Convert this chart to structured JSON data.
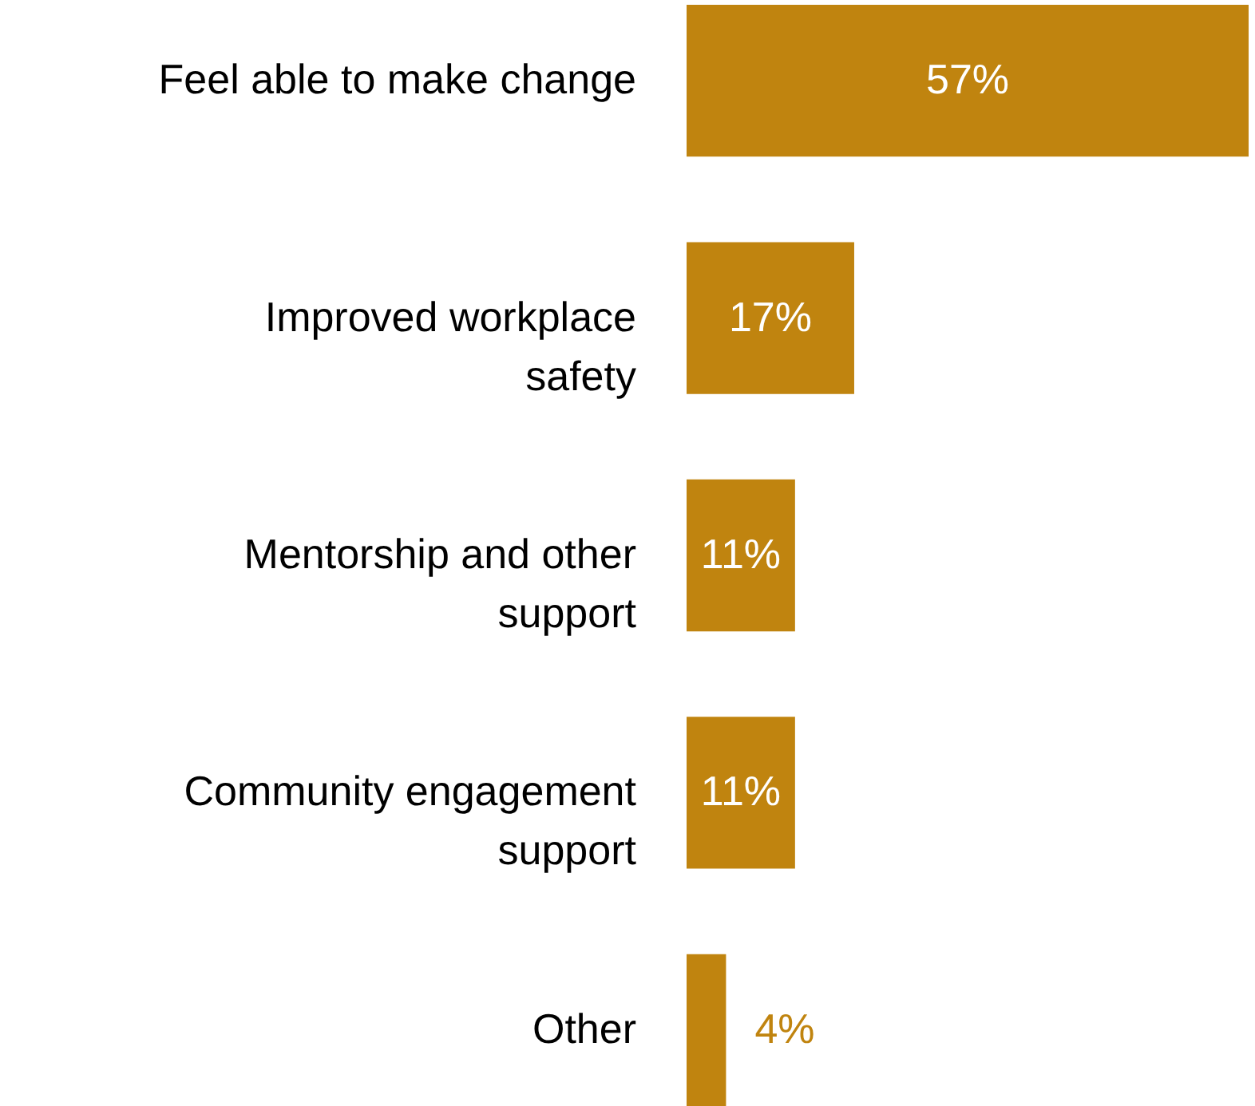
{
  "chart_data": {
    "type": "bar",
    "orientation": "horizontal",
    "categories": [
      "Feel able to make change",
      "Improved workplace\nsafety",
      "Mentorship and other\nsupport",
      "Community engagement\nsupport",
      "Other"
    ],
    "values": [
      57,
      17,
      11,
      11,
      4
    ],
    "color": "#c0840f",
    "data_labels": true,
    "value_labels": [
      "57%",
      "17%",
      "11%",
      "11%",
      "4%"
    ],
    "grid": false
  }
}
